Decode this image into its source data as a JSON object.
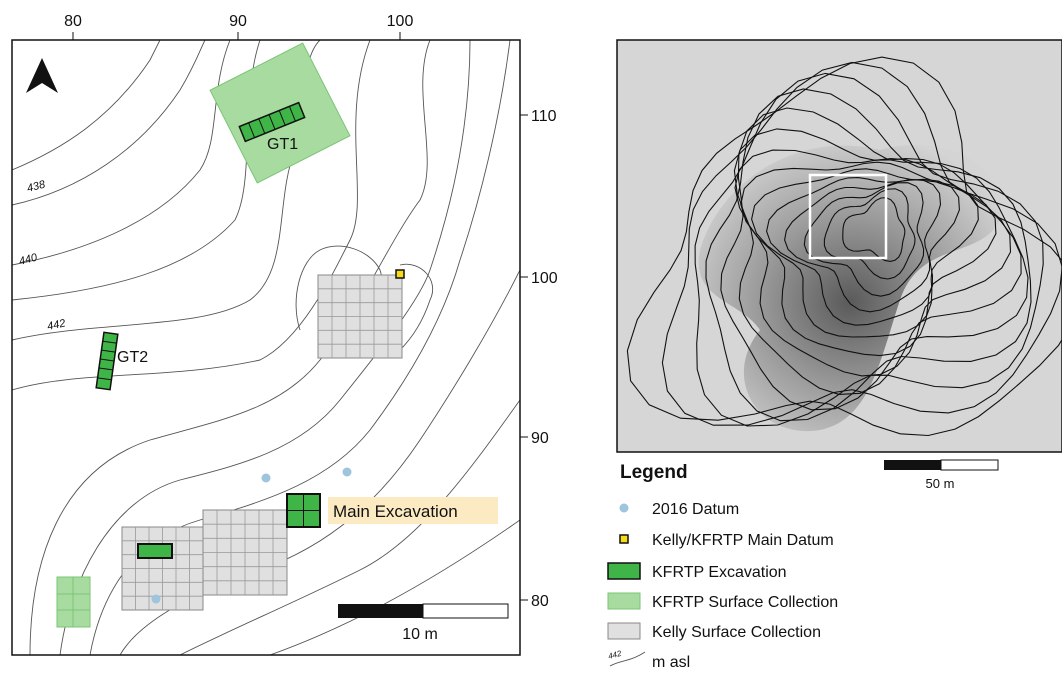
{
  "left_map": {
    "x_ticks": [
      "80",
      "90",
      "100"
    ],
    "y_ticks": [
      "110",
      "100",
      "90",
      "80"
    ],
    "contour_labels": [
      "438",
      "440",
      "442"
    ],
    "features": {
      "gt1": "GT1",
      "gt2": "GT2",
      "main_excavation": "Main Excavation"
    },
    "scale_label": "10 m"
  },
  "right_map": {
    "scale_label": "50 m"
  },
  "legend": {
    "title": "Legend",
    "items": [
      "2016 Datum",
      "Kelly/KFRTP Main Datum",
      "KFRTP Excavation",
      "KFRTP Surface Collection",
      "Kelly Surface Collection"
    ],
    "contour_sample": "442",
    "contour_unit": "m asl"
  }
}
